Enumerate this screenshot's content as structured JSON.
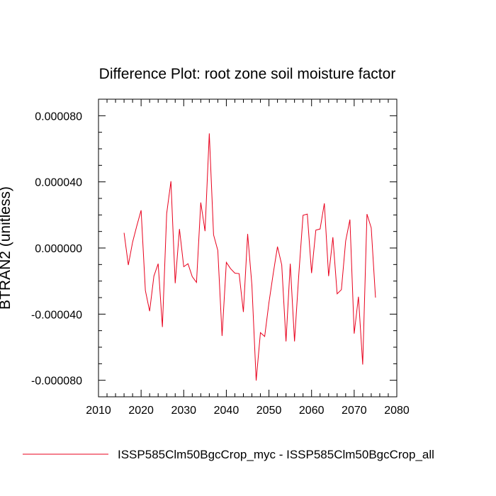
{
  "chart_data": {
    "type": "line",
    "title": "Difference Plot: root zone soil moisture factor",
    "xlabel": "",
    "ylabel": "BTRAN2  (unitless)",
    "xlim": [
      2010,
      2080
    ],
    "ylim": [
      -9e-05,
      9e-05
    ],
    "x_ticks": [
      2010,
      2020,
      2030,
      2040,
      2050,
      2060,
      2070,
      2080
    ],
    "x_tick_labels": [
      "2010",
      "2020",
      "2030",
      "2040",
      "2050",
      "2060",
      "2070",
      "2080"
    ],
    "y_ticks": [
      -8e-05,
      -4e-05,
      0,
      4e-05,
      8e-05
    ],
    "y_tick_labels": [
      "-0.000080",
      "-0.000040",
      "0.000000",
      "0.000040",
      "0.000080"
    ],
    "grid": false,
    "legend_position": "bottom-left",
    "colors": {
      "series": "#e8001c",
      "axis": "#000000"
    },
    "series": [
      {
        "name": "ISSP585Clm50BgcCrop_myc - ISSP585Clm50BgcCrop_all",
        "x": [
          2016,
          2017,
          2018,
          2019,
          2020,
          2021,
          2022,
          2023,
          2024,
          2025,
          2026,
          2027,
          2028,
          2029,
          2030,
          2031,
          2032,
          2033,
          2034,
          2035,
          2036,
          2037,
          2038,
          2039,
          2040,
          2041,
          2042,
          2043,
          2044,
          2045,
          2046,
          2047,
          2048,
          2049,
          2050,
          2051,
          2052,
          2053,
          2054,
          2055,
          2056,
          2057,
          2058,
          2059,
          2060,
          2061,
          2062,
          2063,
          2064,
          2065,
          2066,
          2067,
          2068,
          2069,
          2070,
          2071,
          2072,
          2073,
          2074,
          2075
        ],
        "values": [
          9.2e-06,
          -1.03e-05,
          3.5e-06,
          1.35e-05,
          2.28e-05,
          -2.57e-05,
          -3.82e-05,
          -1.7e-05,
          -9.5e-06,
          -4.78e-05,
          2.08e-05,
          4.04e-05,
          -2.13e-05,
          1.15e-05,
          -1.13e-05,
          -9.5e-06,
          -1.73e-05,
          -2.08e-05,
          2.75e-05,
          1.02e-05,
          6.93e-05,
          8e-06,
          -1.5e-06,
          -5.32e-05,
          -8.7e-06,
          -1.25e-05,
          -1.52e-05,
          -1.55e-05,
          -3.87e-05,
          8.5e-06,
          -2.25e-05,
          -8.02e-05,
          -5.12e-05,
          -5.35e-05,
          -3.3e-05,
          -1.55e-05,
          8e-07,
          -1.02e-05,
          -5.65e-05,
          -9.5e-06,
          -5.65e-05,
          -1.62e-05,
          1.98e-05,
          2.05e-05,
          -1.52e-05,
          1.08e-05,
          1.15e-05,
          2.7e-05,
          -1.7e-05,
          6.5e-06,
          -2.77e-05,
          -2.52e-05,
          4.2e-06,
          1.72e-05,
          -5.18e-05,
          -2.95e-05,
          -7.05e-05,
          2.05e-05,
          1.22e-05,
          -3e-05
        ]
      }
    ]
  }
}
